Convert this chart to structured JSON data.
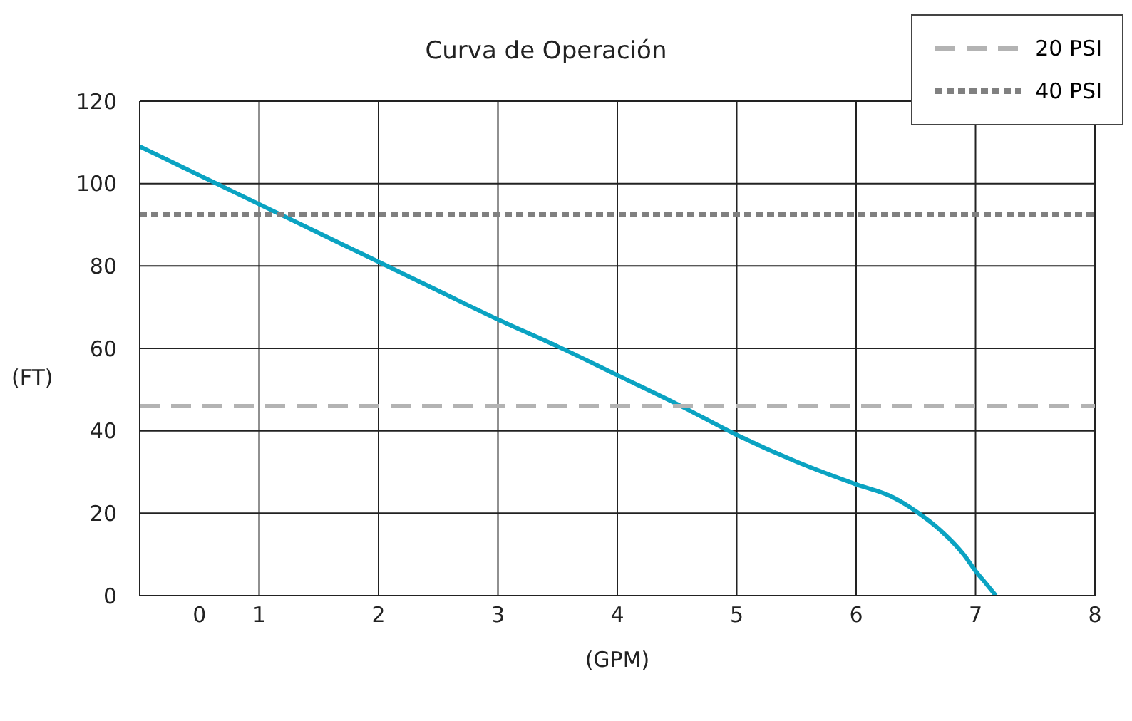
{
  "chart_data": {
    "type": "line",
    "title": "Curva de Operación",
    "xlabel": "(GPM)",
    "ylabel": "(FT)",
    "xlim": [
      0,
      8
    ],
    "xticks": [
      {
        "value": 0.5,
        "label": "0"
      },
      1,
      2,
      3,
      4,
      5,
      6,
      7,
      8
    ],
    "ylim": [
      0,
      120
    ],
    "yticks": [
      0,
      20,
      40,
      60,
      80,
      100,
      120
    ],
    "grid": true,
    "legend": "top right",
    "marker": "none",
    "series": [
      {
        "color": "#0aa3c2",
        "line_style": "solid",
        "x": [
          0,
          0.5,
          1,
          1.5,
          2,
          2.5,
          3,
          3.5,
          4,
          4.5,
          5,
          5.5,
          6,
          6.3,
          6.5,
          6.7,
          6.9,
          7,
          7.1,
          7.17
        ],
        "values": [
          109,
          102,
          95,
          88,
          81,
          74,
          67,
          60.5,
          53.5,
          46.5,
          39,
          32.5,
          27,
          24,
          20.5,
          16,
          10,
          6,
          2.5,
          0
        ]
      },
      {
        "name": "20 PSI",
        "color": "#b3b3b3",
        "line_style": "dashed",
        "x": [
          0,
          8
        ],
        "values": [
          46,
          46
        ]
      },
      {
        "name": "40 PSI",
        "color": "#808080",
        "line_style": "dotted",
        "x": [
          0,
          8
        ],
        "values": [
          92.5,
          92.5
        ]
      }
    ]
  }
}
